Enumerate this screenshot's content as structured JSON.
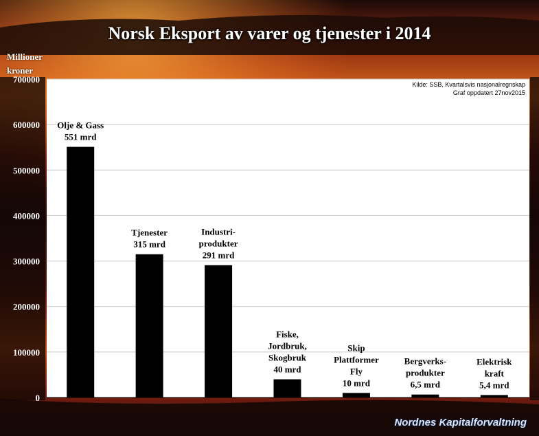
{
  "title": "Norsk Eksport av varer og tjenester i 2014",
  "y_unit_line1": "Millioner",
  "y_unit_line2": "kroner",
  "source_line1": "Kilde: SSB, Kvartalsvis nasjonalregnskap",
  "source_line2": "Graf oppdatert 27nov2015",
  "footer": "Nordnes Kapitalforvaltning",
  "colors": {
    "bar": "#000000",
    "plot_bg": "#ffffff",
    "grid": "#c8c8c8"
  },
  "chart_data": {
    "type": "bar",
    "categories": [
      "Olje & Gass",
      "Tjenester",
      "Industriprodukter",
      "Fiske, Jordbruk, Skogbruk",
      "Skip Plattformer Fly",
      "Bergverksprodukter",
      "Elektrisk kraft"
    ],
    "values": [
      551000,
      315000,
      291000,
      40000,
      10000,
      6500,
      5400
    ],
    "bar_labels": [
      [
        "Olje & Gass",
        "551 mrd"
      ],
      [
        "Tjenester",
        "315 mrd"
      ],
      [
        "Industri-",
        "produkter",
        "291 mrd"
      ],
      [
        "Fiske,",
        "Jordbruk,",
        "Skogbruk",
        "40 mrd"
      ],
      [
        "Skip",
        "Plattformer",
        "Fly",
        "10 mrd"
      ],
      [
        "Bergverks-",
        "produkter",
        "6,5 mrd"
      ],
      [
        "Elektrisk",
        "kraft",
        "5,4 mrd"
      ]
    ],
    "yticks": [
      0,
      100000,
      200000,
      300000,
      400000,
      500000,
      600000,
      700000
    ],
    "ytick_labels": [
      "0",
      "100000",
      "200000",
      "300000",
      "400000",
      "500000",
      "600000",
      "700000"
    ],
    "ylim": [
      0,
      700000
    ],
    "grid": true,
    "legend": "none"
  }
}
